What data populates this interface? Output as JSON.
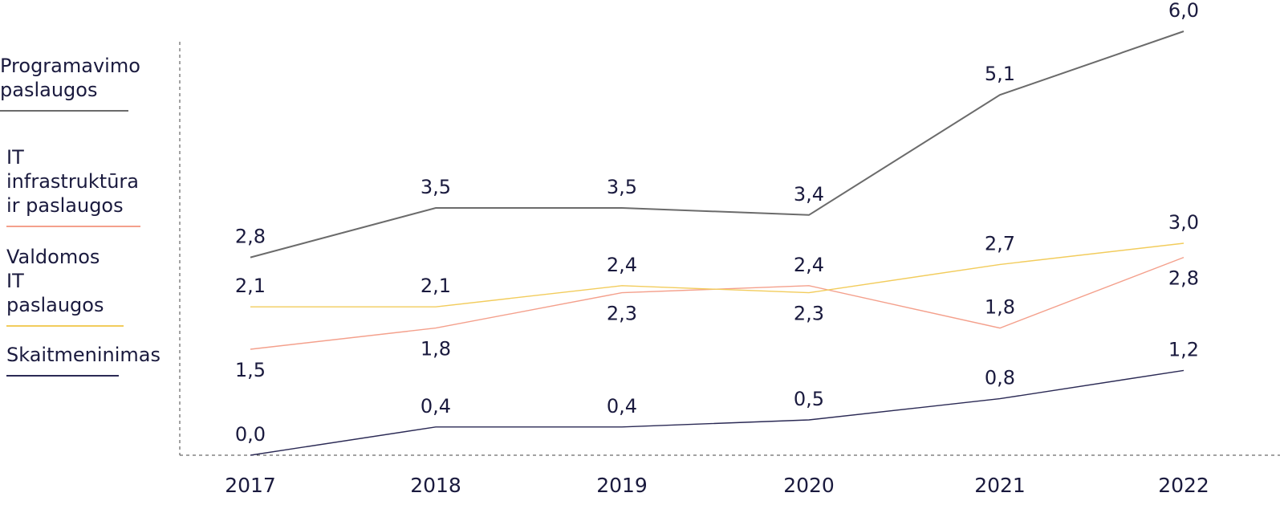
{
  "chart_data": {
    "type": "line",
    "x": [
      "2017",
      "2018",
      "2019",
      "2020",
      "2021",
      "2022"
    ],
    "series": [
      {
        "name": "Programavimo\npaslaugos",
        "color": "#6b6b6b",
        "values": [
          2.8,
          3.5,
          3.5,
          3.4,
          5.1,
          6.0
        ],
        "labels": [
          "2,8",
          "3,5",
          "3,5",
          "3,4",
          "5,1",
          "6,0"
        ]
      },
      {
        "name": "IT\ninfrastruktūra\nir paslaugos",
        "color": "#f4a08c",
        "values": [
          1.5,
          1.8,
          2.3,
          2.4,
          1.8,
          2.8
        ],
        "labels": [
          "1,5",
          "1,8",
          "2,3",
          "2,4",
          "1,8",
          "2,8"
        ]
      },
      {
        "name": "Valdomos\nIT\npaslaugos",
        "color": "#f2cc5c",
        "values": [
          2.1,
          2.1,
          2.4,
          2.3,
          2.7,
          3.0
        ],
        "labels": [
          "2,1",
          "2,1",
          "2,4",
          "2,3",
          "2,7",
          "3,0"
        ]
      },
      {
        "name": "Skaitmeninimas",
        "color": "#2b2a55",
        "values": [
          0.0,
          0.4,
          0.4,
          0.5,
          0.8,
          1.2
        ],
        "labels": [
          "0,0",
          "0,4",
          "0,4",
          "0,5",
          "0,8",
          "1,2"
        ]
      }
    ],
    "ylim": [
      0,
      6.0
    ],
    "grid": false,
    "legend": "left"
  }
}
